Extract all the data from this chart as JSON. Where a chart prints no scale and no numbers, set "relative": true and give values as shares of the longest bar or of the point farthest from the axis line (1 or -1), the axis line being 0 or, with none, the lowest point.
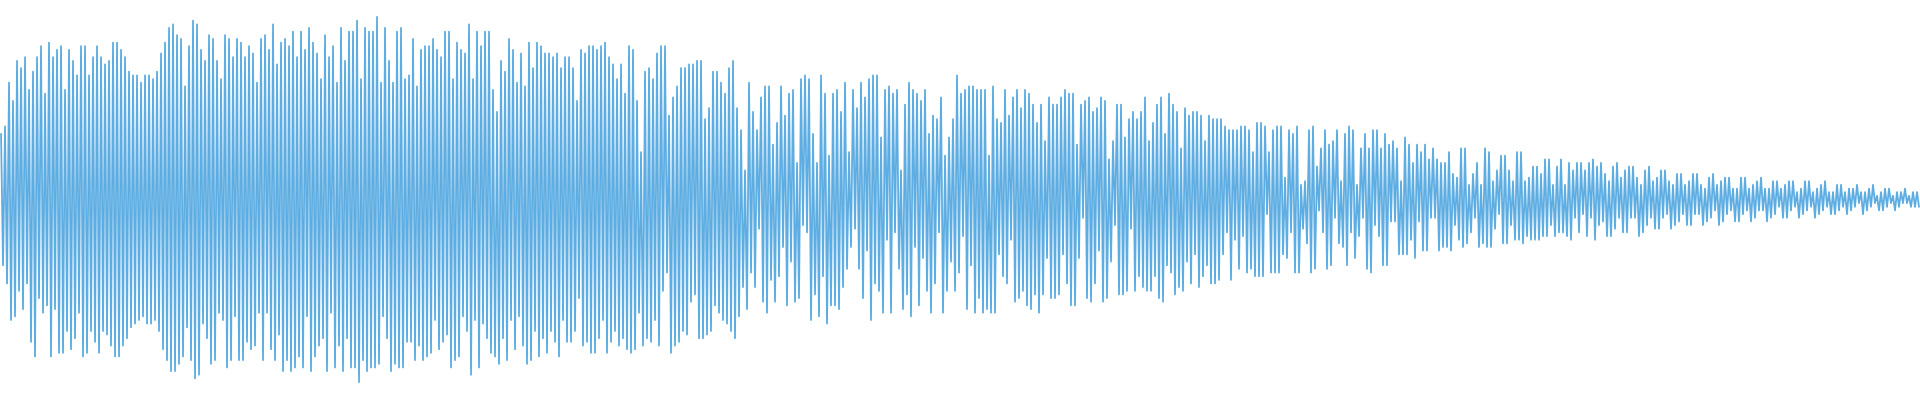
{
  "chart_data": {
    "type": "line",
    "relative": true,
    "line_style": "solid",
    "categories": [
      null,
      null,
      null,
      null,
      null,
      null,
      null,
      null,
      null,
      null,
      null,
      null,
      null,
      null,
      null,
      null,
      null,
      null,
      null,
      null,
      null,
      null,
      null,
      null,
      null,
      null,
      null,
      null,
      null,
      null,
      null,
      null,
      null,
      null,
      null,
      null,
      null,
      null,
      null,
      null,
      null,
      null,
      null,
      null,
      null,
      null,
      null,
      null,
      null,
      null,
      null,
      null,
      null,
      null,
      null,
      null,
      null,
      null,
      null,
      null,
      null,
      null,
      null,
      null,
      null,
      null,
      null,
      null,
      null,
      null,
      null,
      null,
      null,
      null,
      null,
      null,
      null,
      null,
      null,
      null,
      null,
      null,
      null,
      null,
      null,
      null,
      null,
      null,
      null,
      null,
      null,
      null,
      null,
      null,
      null,
      null,
      null,
      null,
      null,
      null,
      null,
      null,
      null,
      null,
      null,
      null,
      null,
      null,
      null,
      null,
      null,
      null,
      null,
      null,
      null,
      null,
      null,
      null,
      null,
      null,
      null,
      null,
      null,
      null,
      null,
      null,
      null,
      null,
      null,
      null,
      null,
      null,
      null,
      null,
      null,
      null,
      null,
      null,
      null,
      null,
      null,
      null,
      null,
      null,
      null,
      null,
      null,
      null,
      null,
      null,
      null,
      null,
      null,
      null,
      null,
      null,
      null,
      null,
      null,
      null,
      null,
      null,
      null,
      null,
      null,
      null,
      null,
      null,
      null,
      null,
      null,
      null,
      null,
      null,
      null,
      null,
      null,
      null,
      null,
      null,
      null,
      null,
      null,
      null,
      null,
      null,
      null,
      null,
      null,
      null,
      null,
      null,
      null,
      null,
      null,
      null,
      null,
      null,
      null,
      null,
      null,
      null,
      null,
      null,
      null,
      null,
      null,
      null,
      null,
      null,
      null,
      null,
      null,
      null,
      null,
      null,
      null,
      null,
      null,
      null,
      null,
      null,
      null,
      null,
      null,
      null,
      null,
      null,
      null,
      null,
      null,
      null,
      null,
      null,
      null,
      null,
      null,
      null,
      null,
      null,
      null,
      null,
      null,
      null,
      null,
      null,
      null,
      null,
      null,
      null,
      null,
      null,
      null,
      null,
      null,
      null,
      null,
      null,
      null,
      null,
      null,
      null,
      null,
      null,
      null,
      null,
      null,
      null,
      null,
      null,
      null,
      null,
      null,
      null,
      null,
      null,
      null,
      null,
      null,
      null,
      null,
      null,
      null,
      null,
      null,
      null,
      null,
      null,
      null,
      null,
      null,
      null,
      null,
      null,
      null,
      null,
      null,
      null,
      null,
      null,
      null,
      null,
      null,
      null,
      null,
      null,
      null,
      null,
      null,
      null,
      null,
      null,
      null,
      null,
      null,
      null,
      null,
      null,
      null,
      null,
      null,
      null,
      null,
      null,
      null,
      null,
      null,
      null,
      null,
      null,
      null,
      null,
      null,
      null,
      null,
      null,
      null,
      null,
      null,
      null,
      null,
      null,
      null,
      null,
      null,
      null,
      null,
      null,
      null,
      null,
      null,
      null,
      null,
      null,
      null,
      null,
      null,
      null,
      null,
      null,
      null,
      null,
      null,
      null,
      null,
      null,
      null,
      null,
      null,
      null,
      null,
      null,
      null,
      null,
      null,
      null,
      null,
      null,
      null,
      null,
      null,
      null,
      null,
      null,
      null,
      null,
      null,
      null,
      null,
      null,
      null,
      null,
      null,
      null,
      null,
      null,
      null,
      null,
      null,
      null,
      null,
      null,
      null,
      null,
      null,
      null,
      null,
      null,
      null,
      null,
      null,
      null,
      null,
      null,
      null,
      null,
      null,
      null,
      null,
      null,
      null,
      null,
      null,
      null,
      null,
      null,
      null,
      null,
      null,
      null,
      null,
      null,
      null,
      null,
      null,
      null,
      null,
      null,
      null,
      null,
      null,
      null,
      null,
      null,
      null,
      null,
      null,
      null,
      null,
      null,
      null,
      null,
      null,
      null,
      null,
      null,
      null,
      null,
      null,
      null,
      null,
      null,
      null,
      null,
      null,
      null,
      null,
      null,
      null,
      null,
      null,
      null,
      null,
      null,
      null,
      null,
      null,
      null,
      null,
      null,
      null,
      null,
      null,
      null,
      null,
      null,
      null,
      null,
      null,
      null,
      null,
      null,
      null,
      null,
      null,
      null,
      null,
      null,
      null,
      null,
      null,
      null,
      null,
      null,
      null,
      null,
      null,
      null,
      null,
      null,
      null,
      null,
      null,
      null,
      null,
      null,
      null,
      null,
      null,
      null,
      null,
      null,
      null,
      null,
      null,
      null,
      null,
      null,
      null,
      null,
      null,
      null,
      null,
      null,
      null,
      null,
      null,
      null,
      null,
      null,
      null,
      null,
      null,
      null,
      null,
      null,
      null,
      null,
      null,
      null,
      null,
      null,
      null,
      null,
      null,
      null,
      null,
      null,
      null,
      null,
      null,
      null,
      null,
      null,
      null,
      null,
      null,
      null,
      null,
      null,
      null,
      null,
      null,
      null,
      null,
      null,
      null,
      null,
      null,
      null,
      null,
      null,
      null,
      null,
      null,
      null,
      null,
      null,
      null,
      null,
      null,
      null,
      null,
      null,
      null,
      null,
      null,
      null,
      null,
      null,
      null,
      null,
      null,
      null,
      null,
      null,
      null,
      null,
      null,
      null,
      null,
      null,
      null,
      null,
      null,
      null,
      null,
      null,
      null,
      null,
      null,
      null,
      null,
      null,
      null,
      null,
      null,
      null,
      null,
      null,
      null,
      null,
      null,
      null,
      null,
      null,
      null,
      null,
      null,
      null,
      null,
      null,
      null,
      null,
      null,
      null,
      null,
      null,
      null,
      null,
      null,
      null,
      null,
      null,
      null,
      null,
      null,
      null,
      null,
      null,
      null,
      null,
      null,
      null,
      null,
      null,
      null,
      null,
      null,
      null,
      null,
      null,
      null,
      null,
      null,
      null,
      null,
      null,
      null,
      null,
      null,
      null,
      null,
      null,
      null,
      null,
      null,
      null,
      null,
      null,
      null,
      null,
      null,
      null,
      null,
      null,
      null,
      null,
      null,
      null,
      null,
      null,
      null,
      null,
      null,
      null,
      null,
      null,
      null,
      null,
      null,
      null,
      null,
      null,
      null,
      null,
      null,
      null,
      null,
      null,
      null,
      null,
      null,
      null,
      null,
      null,
      null,
      null,
      null,
      null,
      null,
      null,
      null,
      null,
      null,
      null,
      null,
      null,
      null,
      null,
      null,
      null,
      null,
      null,
      null,
      null,
      null,
      null,
      null,
      null,
      null,
      null,
      null,
      null,
      null,
      null,
      null,
      null,
      null,
      null,
      null,
      null,
      null,
      null,
      null,
      null,
      null,
      null,
      null,
      null,
      null,
      null,
      null,
      null,
      null,
      null,
      null,
      null,
      null,
      null,
      null,
      null,
      null,
      null,
      null,
      null,
      null,
      null,
      null,
      null,
      null,
      null,
      null,
      null,
      null,
      null,
      null,
      null,
      null,
      null,
      null,
      null,
      null,
      null,
      null,
      null,
      null,
      null,
      null,
      null,
      null,
      null,
      null,
      null,
      null,
      null,
      null,
      null,
      null,
      null,
      null,
      null,
      null,
      null,
      null,
      null,
      null,
      null,
      null,
      null,
      null,
      null,
      null,
      null,
      null,
      null,
      null,
      null,
      null,
      null,
      null,
      null,
      null,
      null,
      null,
      null,
      null,
      null,
      null,
      null,
      null,
      null,
      null,
      null,
      null,
      null,
      null,
      null,
      null,
      null,
      null,
      null,
      null,
      null,
      null,
      null,
      null,
      null,
      null,
      null,
      null,
      null,
      null,
      null,
      null,
      null,
      null,
      null,
      null,
      null,
      null,
      null,
      null,
      null,
      null,
      null,
      null,
      null,
      null,
      null,
      null,
      null,
      null,
      null,
      null,
      null,
      null,
      null,
      null,
      null,
      null,
      null,
      null,
      null,
      null,
      null,
      null,
      null,
      null,
      null,
      null,
      null,
      null,
      null,
      null,
      null,
      null,
      null,
      null,
      null,
      null,
      null,
      null,
      null,
      null,
      null,
      null,
      null,
      null,
      null,
      null,
      null,
      null,
      null,
      null,
      null,
      null,
      null,
      null,
      null,
      null,
      null,
      null,
      null,
      null,
      null,
      null,
      null,
      null,
      null,
      null,
      null,
      null,
      null,
      null,
      null,
      null,
      null,
      null,
      null
    ],
    "series": [
      {
        "color": "#5dade2",
        "values": [
          0.68,
          0.32,
          0.7,
          0.27,
          0.82,
          0.17,
          0.77,
          0.18,
          0.88,
          0.25,
          0.86,
          0.2,
          0.89,
          0.27,
          0.8,
          0.11,
          0.85,
          0.07,
          0.89,
          0.23,
          0.92,
          0.19,
          0.79,
          0.21,
          0.93,
          0.07,
          0.89,
          0.2,
          0.91,
          0.08,
          0.92,
          0.08,
          0.8,
          0.14,
          0.91,
          0.09,
          0.88,
          0.12,
          0.84,
          0.19,
          0.92,
          0.07,
          0.92,
          0.08,
          0.84,
          0.14,
          0.89,
          0.11,
          0.92,
          0.08,
          0.89,
          0.14,
          0.87,
          0.13,
          0.88,
          0.1,
          0.93,
          0.07,
          0.93,
          0.07,
          0.91,
          0.1,
          0.89,
          0.12,
          0.85,
          0.15,
          0.84,
          0.16,
          0.84,
          0.17,
          0.82,
          0.18,
          0.84,
          0.16,
          0.84,
          0.16,
          0.83,
          0.17,
          0.85,
          0.14,
          0.9,
          0.09,
          0.93,
          0.06,
          0.97,
          0.03,
          0.98,
          0.03,
          0.95,
          0.05,
          0.94,
          0.07,
          0.81,
          0.15,
          0.92,
          0.06,
          0.99,
          0.01,
          0.98,
          0.02,
          0.91,
          0.16,
          0.88,
          0.12,
          0.95,
          0.05,
          0.94,
          0.06,
          0.88,
          0.19,
          0.83,
          0.17,
          0.95,
          0.04,
          0.94,
          0.06,
          0.89,
          0.18,
          0.94,
          0.06,
          0.93,
          0.06,
          0.89,
          0.11,
          0.92,
          0.09,
          0.9,
          0.1,
          0.82,
          0.19,
          0.94,
          0.06,
          0.95,
          0.19,
          0.91,
          0.09,
          0.98,
          0.06,
          0.87,
          0.13,
          0.93,
          0.03,
          0.94,
          0.06,
          0.92,
          0.03,
          0.96,
          0.04,
          0.89,
          0.07,
          0.96,
          0.04,
          0.91,
          0.18,
          0.97,
          0.03,
          0.93,
          0.07,
          0.9,
          0.1,
          0.83,
          0.12,
          0.95,
          0.03,
          0.89,
          0.19,
          0.92,
          0.04,
          0.82,
          0.1,
          0.97,
          0.03,
          0.88,
          0.12,
          0.96,
          0.04,
          0.96,
          0.04,
          0.99,
          0,
          0.83,
          0.06,
          0.97,
          0.03,
          0.96,
          0.04,
          0.96,
          0.04,
          1,
          0.05,
          0.82,
          0.18,
          0.97,
          0.12,
          0.88,
          0.03,
          0.82,
          0.05,
          0.96,
          0.04,
          0.97,
          0.04,
          0.83,
          0.11,
          0.84,
          0.11,
          0.94,
          0.06,
          0.81,
          0.1,
          0.91,
          0.06,
          0.92,
          0.07,
          0.92,
          0.08,
          0.94,
          0.17,
          0.91,
          0.09,
          0.89,
          0.11,
          0.96,
          0.13,
          0.96,
          0.04,
          0.83,
          0.06,
          0.93,
          0.07,
          0.91,
          0.18,
          0.9,
          0.14,
          0.98,
          0.02,
          0.83,
          0.17,
          0.96,
          0.04,
          0.92,
          0.16,
          0.96,
          0.12,
          0.96,
          0.08,
          0.8,
          0.07,
          0.74,
          0.05,
          0.88,
          0.12,
          0.85,
          0.06,
          0.94,
          0.17,
          0.91,
          0.09,
          0.82,
          0.18,
          0.9,
          0.1,
          0.81,
          0.05,
          0.93,
          0.06,
          0.86,
          0.14,
          0.93,
          0.07,
          0.92,
          0.12,
          0.9,
          0.08,
          0.9,
          0.14,
          0.89,
          0.11,
          0.9,
          0.07,
          0.86,
          0.17,
          0.89,
          0.11,
          0.89,
          0.11,
          0.86,
          0.14,
          0.77,
          0.23,
          0.91,
          0.1,
          0.9,
          0.11,
          0.92,
          0.08,
          0.92,
          0.08,
          0.91,
          0.12,
          0.92,
          0.17,
          0.93,
          0.08,
          0.89,
          0.11,
          0.87,
          0.14,
          0.83,
          0.1,
          0.87,
          0.12,
          0.79,
          0.09,
          0.92,
          0.08,
          0.91,
          0.09,
          0.77,
          0.19,
          0.63,
          0.1,
          0.85,
          0.12,
          0.86,
          0.11,
          0.83,
          0.17,
          0.9,
          0.1,
          0.92,
          0.25,
          0.92,
          0.3,
          0.73,
          0.08,
          0.78,
          0.1,
          0.81,
          0.11,
          0.86,
          0.14,
          0.86,
          0.13,
          0.87,
          0.22,
          0.87,
          0.24,
          0.88,
          0.12,
          0.88,
          0.12,
          0.72,
          0.13,
          0.75,
          0.14,
          0.85,
          0.21,
          0.85,
          0.19,
          0.82,
          0.17,
          0.79,
          0.16,
          0.86,
          0.14,
          0.88,
          0.12,
          0.75,
          0.18,
          0.69,
          0.26,
          0.58,
          0.2,
          0.82,
          0.3,
          0.74,
          0.26,
          0.69,
          0.42,
          0.78,
          0.22,
          0.81,
          0.19,
          0.81,
          0.28,
          0.65,
          0.22,
          0.71,
          0.29,
          0.81,
          0.37,
          0.73,
          0.21,
          0.79,
          0.33,
          0.8,
          0.22,
          0.6,
          0.23,
          0.83,
          0.43,
          0.84,
          0.41,
          0.83,
          0.17,
          0.68,
          0.24,
          0.6,
          0.18,
          0.84,
          0.29,
          0.79,
          0.16,
          0.62,
          0.21,
          0.79,
          0.21,
          0.8,
          0.2,
          0.74,
          0.26,
          0.82,
          0.31,
          0.63,
          0.37,
          0.8,
          0.42,
          0.75,
          0.31,
          0.82,
          0.23,
          0.78,
          0.36,
          0.83,
          0.17,
          0.84,
          0.27,
          0.84,
          0.25,
          0.67,
          0.19,
          0.8,
          0.39,
          0.81,
          0.19,
          0.79,
          0.41,
          0.8,
          0.31,
          0.58,
          0.2,
          0.76,
          0.24,
          0.82,
          0.18,
          0.8,
          0.37,
          0.79,
          0.21,
          0.77,
          0.34,
          0.8,
          0.25,
          0.68,
          0.19,
          0.73,
          0.27,
          0.72,
          0.41,
          0.78,
          0.19,
          0.62,
          0.25,
          0.67,
          0.33,
          0.72,
          0.25,
          0.84,
          0.3,
          0.79,
          0.4,
          0.8,
          0.2,
          0.81,
          0.32,
          0.81,
          0.19,
          0.8,
          0.23,
          0.8,
          0.19,
          0.8,
          0.2,
          0.62,
          0.19,
          0.81,
          0.19,
          0.72,
          0.35,
          0.71,
          0.29,
          0.8,
          0.27,
          0.73,
          0.39,
          0.78,
          0.22,
          0.8,
          0.23,
          0.75,
          0.25,
          0.8,
          0.21,
          0.79,
          0.2,
          0.76,
          0.24,
          0.71,
          0.19,
          0.76,
          0.24,
          0.66,
          0.34,
          0.78,
          0.23,
          0.76,
          0.23,
          0.76,
          0.24,
          0.78,
          0.35,
          0.8,
          0.27,
          0.79,
          0.21,
          0.79,
          0.21,
          0.65,
          0.34,
          0.76,
          0.45,
          0.77,
          0.23,
          0.78,
          0.22,
          0.74,
          0.27,
          0.75,
          0.36,
          0.78,
          0.22,
          0.77,
          0.23,
          0.61,
          0.33,
          0.66,
          0.43,
          0.76,
          0.24,
          0.76,
          0.24,
          0.67,
          0.25,
          0.72,
          0.42,
          0.74,
          0.25,
          0.72,
          0.29,
          0.74,
          0.26,
          0.78,
          0.25,
          0.66,
          0.25,
          0.71,
          0.29,
          0.76,
          0.23,
          0.78,
          0.22,
          0.68,
          0.32,
          0.79,
          0.3,
          0.76,
          0.24,
          0.74,
          0.26,
          0.64,
          0.25,
          0.75,
          0.33,
          0.73,
          0.27,
          0.74,
          0.35,
          0.74,
          0.26,
          0.73,
          0.29,
          0.66,
          0.32,
          0.73,
          0.27,
          0.72,
          0.27,
          0.72,
          0.28,
          0.72,
          0.35,
          0.7,
          0.41,
          0.69,
          0.28,
          0.69,
          0.39,
          0.69,
          0.31,
          0.7,
          0.4,
          0.7,
          0.3,
          0.69,
          0.31,
          0.63,
          0.29,
          0.71,
          0.29,
          0.71,
          0.29,
          0.7,
          0.46,
          0.63,
          0.3,
          0.69,
          0.3,
          0.7,
          0.3,
          0.7,
          0.35,
          0.56,
          0.34,
          0.69,
          0.41,
          0.68,
          0.3,
          0.7,
          0.3,
          0.54,
          0.42,
          0.55,
          0.38,
          0.69,
          0.3,
          0.7,
          0.31,
          0.59,
          0.47,
          0.64,
          0.41,
          0.69,
          0.31,
          0.65,
          0.32,
          0.66,
          0.45,
          0.69,
          0.38,
          0.55,
          0.37,
          0.68,
          0.32,
          0.7,
          0.41,
          0.69,
          0.34,
          0.54,
          0.4,
          0.64,
          0.45,
          0.68,
          0.31,
          0.64,
          0.3,
          0.69,
          0.43,
          0.69,
          0.4,
          0.64,
          0.32,
          0.68,
          0.32,
          0.65,
          0.44,
          0.66,
          0.44,
          0.64,
          0.35,
          0.55,
          0.35,
          0.67,
          0.35,
          0.65,
          0.39,
          0.6,
          0.34,
          0.65,
          0.44,
          0.63,
          0.36,
          0.65,
          0.36,
          0.61,
          0.45,
          0.64,
          0.45,
          0.61,
          0.36,
          0.6,
          0.37,
          0.6,
          0.37,
          0.63,
          0.36,
          0.57,
          0.43,
          0.56,
          0.39,
          0.64,
          0.37,
          0.64,
          0.38,
          0.54,
          0.41,
          0.57,
          0.45,
          0.6,
          0.37,
          0.54,
          0.38,
          0.64,
          0.37,
          0.63,
          0.37,
          0.55,
          0.42,
          0.58,
          0.46,
          0.62,
          0.38,
          0.62,
          0.38,
          0.58,
          0.43,
          0.55,
          0.39,
          0.63,
          0.39,
          0.63,
          0.38,
          0.55,
          0.4,
          0.56,
          0.39,
          0.59,
          0.39,
          0.59,
          0.39,
          0.57,
          0.4,
          0.61,
          0.4,
          0.61,
          0.43,
          0.54,
          0.4,
          0.59,
          0.41,
          0.61,
          0.41,
          0.54,
          0.4,
          0.6,
          0.39,
          0.58,
          0.45,
          0.6,
          0.41,
          0.6,
          0.46,
          0.58,
          0.4,
          0.6,
          0.45,
          0.61,
          0.39,
          0.59,
          0.43,
          0.6,
          0.44,
          0.57,
          0.4,
          0.55,
          0.4,
          0.59,
          0.42,
          0.6,
          0.45,
          0.56,
          0.41,
          0.58,
          0.41,
          0.59,
          0.45,
          0.59,
          0.45,
          0.56,
          0.4,
          0.54,
          0.41,
          0.58,
          0.43,
          0.59,
          0.45,
          0.55,
          0.42,
          0.56,
          0.42,
          0.58,
          0.45,
          0.58,
          0.46,
          0.55,
          0.42,
          0.54,
          0.43,
          0.57,
          0.44,
          0.57,
          0.46,
          0.54,
          0.43,
          0.55,
          0.43,
          0.57,
          0.46,
          0.57,
          0.46,
          0.54,
          0.43,
          0.53,
          0.44,
          0.56,
          0.45,
          0.57,
          0.47,
          0.54,
          0.43,
          0.55,
          0.44,
          0.56,
          0.46,
          0.56,
          0.47,
          0.53,
          0.44,
          0.53,
          0.44,
          0.56,
          0.46,
          0.56,
          0.47,
          0.53,
          0.44,
          0.54,
          0.45,
          0.55,
          0.47,
          0.56,
          0.47,
          0.53,
          0.44,
          0.53,
          0.45,
          0.55,
          0.46,
          0.55,
          0.48,
          0.53,
          0.45,
          0.54,
          0.45,
          0.55,
          0.47,
          0.55,
          0.48,
          0.52,
          0.45,
          0.53,
          0.46,
          0.55,
          0.47,
          0.55,
          0.48,
          0.52,
          0.45,
          0.53,
          0.46,
          0.54,
          0.47,
          0.55,
          0.48,
          0.52,
          0.46,
          0.52,
          0.46,
          0.54,
          0.47,
          0.54,
          0.48,
          0.52,
          0.46,
          0.53,
          0.47,
          0.53,
          0.48,
          0.54,
          0.49,
          0.52,
          0.46,
          0.52,
          0.47,
          0.53,
          0.48,
          0.54,
          0.49,
          0.51,
          0.47,
          0.52,
          0.47,
          0.53,
          0.48,
          0.53,
          0.49,
          0.51,
          0.47,
          0.52,
          0.48,
          0.52,
          0.49,
          0.53,
          0.49,
          0.51,
          0.48,
          0.52,
          0.48,
          0.52,
          0.48
        ]
      }
    ]
  }
}
